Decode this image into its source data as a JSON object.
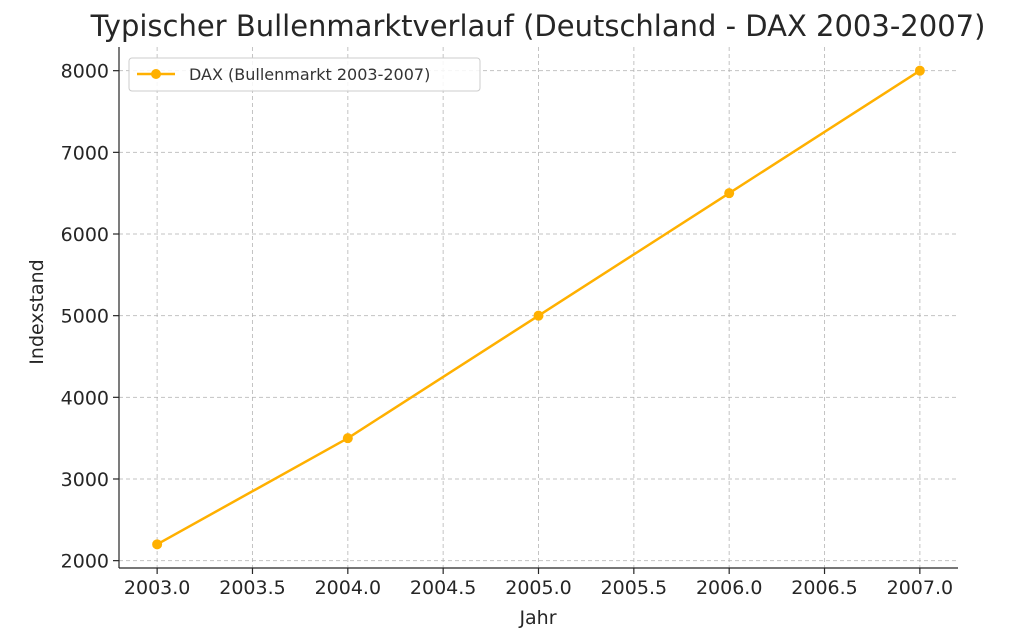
{
  "chart_data": {
    "type": "line",
    "title": "Typischer Bullenmarktverlauf (Deutschland - DAX 2003-2007)",
    "xlabel": "Jahr",
    "ylabel": "Indexstand",
    "x": [
      2003,
      2004,
      2005,
      2006,
      2007
    ],
    "series": [
      {
        "name": "DAX (Bullenmarkt 2003-2007)",
        "values": [
          2200,
          3500,
          5000,
          6500,
          8000
        ],
        "color": "#FFB000",
        "marker": "circle"
      }
    ],
    "xlim": [
      2002.8,
      2007.2
    ],
    "ylim": [
      1910,
      8290
    ],
    "xticks": [
      2003.0,
      2003.5,
      2004.0,
      2004.5,
      2005.0,
      2005.5,
      2006.0,
      2006.5,
      2007.0
    ],
    "xtick_labels": [
      "2003.0",
      "2003.5",
      "2004.0",
      "2004.5",
      "2005.0",
      "2005.5",
      "2006.0",
      "2006.5",
      "2007.0"
    ],
    "yticks": [
      2000,
      3000,
      4000,
      5000,
      6000,
      7000,
      8000
    ],
    "ytick_labels": [
      "2000",
      "3000",
      "4000",
      "5000",
      "6000",
      "7000",
      "8000"
    ],
    "grid": true,
    "legend_position": "top-left"
  }
}
